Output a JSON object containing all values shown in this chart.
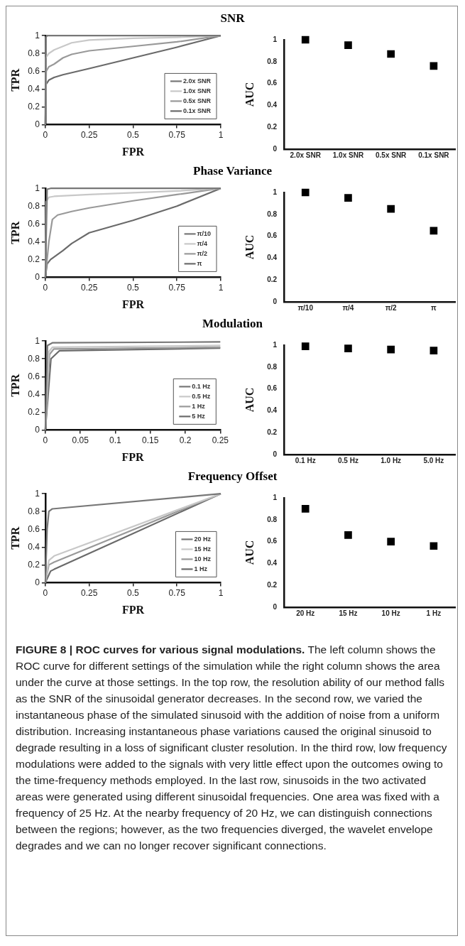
{
  "chart_data": [
    {
      "type": "line",
      "title": "SNR",
      "xlabel": "FPR",
      "ylabel": "TPR",
      "xlim": [
        0,
        1
      ],
      "xticks": [
        0,
        0.25,
        0.5,
        0.75,
        1
      ],
      "ylim": [
        0,
        1
      ],
      "yticks": [
        0,
        0.2,
        0.4,
        0.6,
        0.8,
        1
      ],
      "legend": "bottom right",
      "marker": "none",
      "line_style": "solid",
      "series": [
        {
          "name": "2.0x SNR",
          "color": "#777777",
          "x": [
            0,
            0.002,
            0.01,
            1
          ],
          "values": [
            0,
            0.98,
            1,
            1
          ]
        },
        {
          "name": "1.0x SNR",
          "color": "#c8c8c8",
          "x": [
            0,
            0.001,
            0.02,
            0.05,
            0.1,
            0.15,
            0.25,
            0.5,
            0.75,
            1
          ],
          "values": [
            0,
            0.75,
            0.8,
            0.84,
            0.88,
            0.92,
            0.95,
            0.97,
            0.98,
            1
          ]
        },
        {
          "name": "0.5x SNR",
          "color": "#999999",
          "x": [
            0,
            0.005,
            0.02,
            0.05,
            0.1,
            0.15,
            0.25,
            0.5,
            0.75,
            1
          ],
          "values": [
            0,
            0.6,
            0.65,
            0.68,
            0.75,
            0.79,
            0.83,
            0.88,
            0.93,
            1
          ]
        },
        {
          "name": "0.1x SNR",
          "color": "#6a6a6a",
          "x": [
            0,
            0.003,
            0.02,
            0.05,
            0.1,
            0.25,
            0.5,
            0.75,
            1
          ],
          "values": [
            0,
            0.45,
            0.5,
            0.53,
            0.56,
            0.63,
            0.75,
            0.87,
            1
          ]
        }
      ]
    },
    {
      "type": "scatter",
      "ylabel": "AUC",
      "categories": [
        "2.0x SNR",
        "1.0x SNR",
        "0.5x SNR",
        "0.1x SNR"
      ],
      "ylim": [
        0,
        1
      ],
      "yticks": [
        0,
        0.2,
        0.4,
        0.6,
        0.8,
        1
      ],
      "marker": "square",
      "series": [
        {
          "color": "#000000",
          "values": [
            1.0,
            0.95,
            0.87,
            0.76
          ]
        }
      ]
    },
    {
      "type": "line",
      "title": "Phase Variance",
      "xlabel": "FPR",
      "ylabel": "TPR",
      "xlim": [
        0,
        1
      ],
      "xticks": [
        0,
        0.25,
        0.5,
        0.75,
        1
      ],
      "ylim": [
        0,
        1
      ],
      "yticks": [
        0,
        0.2,
        0.4,
        0.6,
        0.8,
        1
      ],
      "legend": "bottom right",
      "marker": "none",
      "line_style": "solid",
      "series": [
        {
          "name": "π/10",
          "color": "#777777",
          "x": [
            0,
            0.01,
            0.03,
            1
          ],
          "values": [
            0,
            0.99,
            1,
            1
          ]
        },
        {
          "name": "π/4",
          "color": "#c8c8c8",
          "x": [
            0,
            0.005,
            0.02,
            0.05,
            0.25,
            0.5,
            0.75,
            1
          ],
          "values": [
            0,
            0.85,
            0.9,
            0.91,
            0.93,
            0.95,
            0.97,
            1
          ]
        },
        {
          "name": "π/2",
          "color": "#999999",
          "x": [
            0,
            0.02,
            0.04,
            0.07,
            0.15,
            0.25,
            0.5,
            0.75,
            1
          ],
          "values": [
            0,
            0.4,
            0.65,
            0.7,
            0.74,
            0.78,
            0.86,
            0.93,
            1
          ]
        },
        {
          "name": "π",
          "color": "#6a6a6a",
          "x": [
            0,
            0.01,
            0.03,
            0.1,
            0.15,
            0.25,
            0.5,
            0.75,
            1
          ],
          "values": [
            0,
            0.15,
            0.2,
            0.3,
            0.38,
            0.5,
            0.64,
            0.8,
            1
          ]
        }
      ]
    },
    {
      "type": "scatter",
      "ylabel": "AUC",
      "categories": [
        "π/10",
        "π/4",
        "π/2",
        "π"
      ],
      "ylim": [
        0,
        1
      ],
      "yticks": [
        0,
        0.2,
        0.4,
        0.6,
        0.8,
        1
      ],
      "marker": "square",
      "series": [
        {
          "color": "#000000",
          "values": [
            1.0,
            0.95,
            0.85,
            0.65
          ]
        }
      ]
    },
    {
      "type": "line",
      "title": "Modulation",
      "xlabel": "FPR",
      "ylabel": "TPR",
      "xlim": [
        0,
        0.25
      ],
      "xticks": [
        0,
        0.05,
        0.1,
        0.15,
        0.2,
        0.25
      ],
      "ylim": [
        0,
        1
      ],
      "yticks": [
        0,
        0.2,
        0.4,
        0.6,
        0.8,
        1
      ],
      "legend": "bottom right",
      "marker": "none",
      "line_style": "solid",
      "series": [
        {
          "name": "0.1 Hz",
          "color": "#777777",
          "x": [
            0,
            0.003,
            0.01,
            0.25
          ],
          "values": [
            0,
            0.95,
            0.98,
            0.99
          ]
        },
        {
          "name": "0.5 Hz",
          "color": "#c8c8c8",
          "x": [
            0,
            0.005,
            0.01,
            0.25
          ],
          "values": [
            0,
            0.88,
            0.93,
            0.95
          ]
        },
        {
          "name": "1 Hz",
          "color": "#999999",
          "x": [
            0,
            0.006,
            0.012,
            0.25
          ],
          "values": [
            0,
            0.85,
            0.91,
            0.93
          ]
        },
        {
          "name": "5 Hz",
          "color": "#6a6a6a",
          "x": [
            0,
            0.008,
            0.02,
            0.25
          ],
          "values": [
            0,
            0.8,
            0.89,
            0.92
          ]
        }
      ]
    },
    {
      "type": "scatter",
      "ylabel": "AUC",
      "categories": [
        "0.1 Hz",
        "0.5 Hz",
        "1.0 Hz",
        "5.0 Hz"
      ],
      "ylim": [
        0,
        1
      ],
      "yticks": [
        0,
        0.2,
        0.4,
        0.6,
        0.8,
        1
      ],
      "marker": "square",
      "series": [
        {
          "color": "#000000",
          "values": [
            0.99,
            0.97,
            0.96,
            0.95
          ]
        }
      ]
    },
    {
      "type": "line",
      "title": "Frequency Offset",
      "xlabel": "FPR",
      "ylabel": "TPR",
      "xlim": [
        0,
        1
      ],
      "xticks": [
        0,
        0.25,
        0.5,
        0.75,
        1
      ],
      "ylim": [
        0,
        1
      ],
      "yticks": [
        0,
        0.2,
        0.4,
        0.6,
        0.8,
        1
      ],
      "legend": "bottom right",
      "marker": "none",
      "line_style": "solid",
      "series": [
        {
          "name": "20 Hz",
          "color": "#777777",
          "x": [
            0,
            0.01,
            0.02,
            0.04,
            1
          ],
          "values": [
            0,
            0.6,
            0.8,
            0.83,
            1
          ]
        },
        {
          "name": "15 Hz",
          "color": "#c8c8c8",
          "x": [
            0,
            0.02,
            0.05,
            1
          ],
          "values": [
            0,
            0.25,
            0.3,
            1
          ]
        },
        {
          "name": "10 Hz",
          "color": "#999999",
          "x": [
            0,
            0.02,
            0.05,
            1
          ],
          "values": [
            0,
            0.2,
            0.23,
            1
          ]
        },
        {
          "name": "1 Hz",
          "color": "#6a6a6a",
          "x": [
            0,
            0.03,
            0.05,
            1
          ],
          "values": [
            0,
            0.13,
            0.15,
            1
          ]
        }
      ]
    },
    {
      "type": "scatter",
      "ylabel": "AUC",
      "categories": [
        "20 Hz",
        "15 Hz",
        "10 Hz",
        "1 Hz"
      ],
      "ylim": [
        0,
        1
      ],
      "yticks": [
        0,
        0.2,
        0.4,
        0.6,
        0.8,
        1
      ],
      "marker": "square",
      "series": [
        {
          "color": "#000000",
          "values": [
            0.9,
            0.66,
            0.6,
            0.56
          ]
        }
      ],
      "annotations": [
        "FIGURE 8 | ROC curves for various signal modulations.",
        "The left column shows the ROC curve for different settings of the simulation while the right column shows the area under the curve at those settings. In the top row, the resolution ability of our method falls as the SNR of the sinusoidal generator decreases. In the second row, we varied the instantaneous phase of the simulated sinusoid with the addition of noise from a uniform distribution. Increasing instantaneous phase variations caused the original sinusoid to degrade resulting in a loss of significant cluster resolution. In the third row, low frequency modulations were added to the signals with very little effect upon the outcomes owing to the time-frequency methods employed. In the last row, sinusoids in the two activated areas were generated using different sinusoidal frequencies. One area was fixed with a frequency of 25 Hz. At the nearby frequency of 20 Hz, we can distinguish connections between the regions; however, as the two frequencies diverged, the wavelet envelope degrades and we can no longer recover significant connections."
      ]
    }
  ]
}
